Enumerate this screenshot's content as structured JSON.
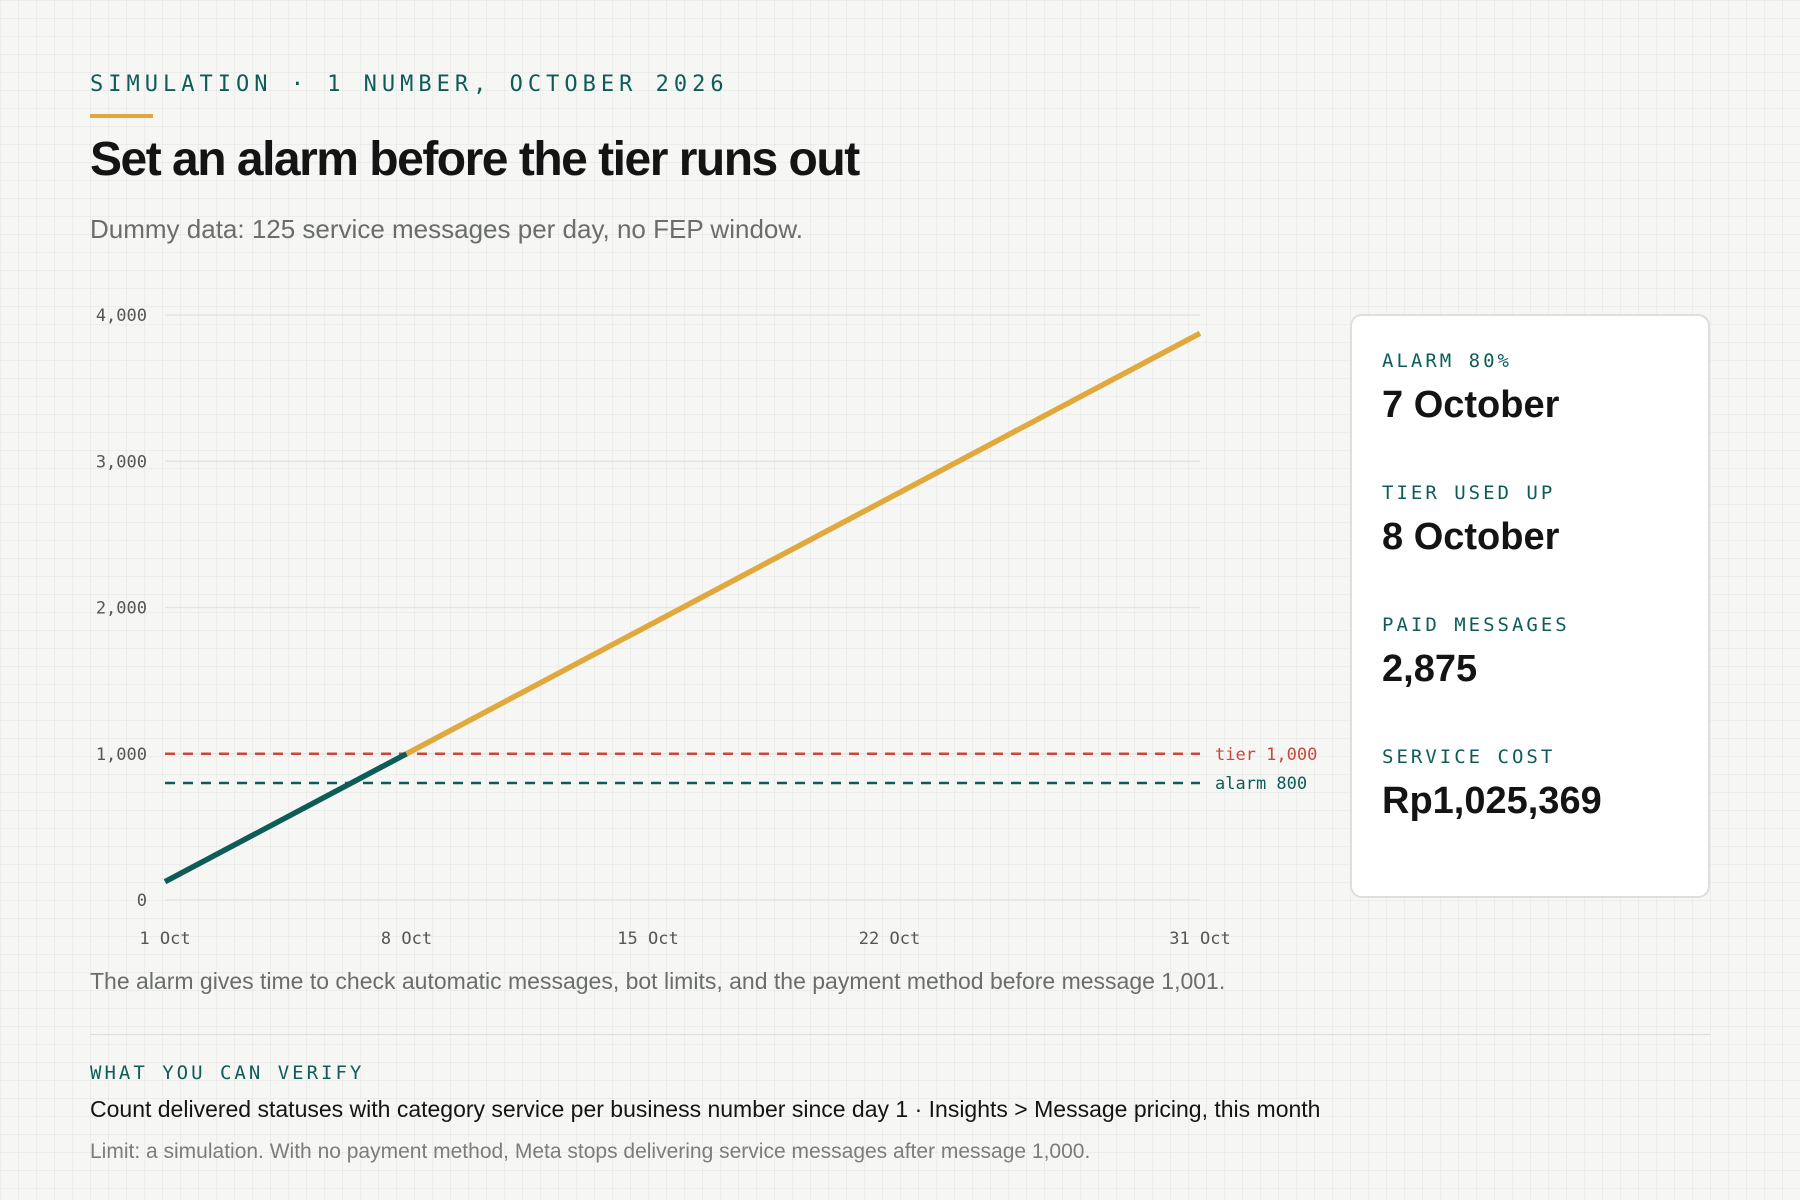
{
  "header": {
    "eyebrow": "SIMULATION · 1 NUMBER, OCTOBER 2026",
    "title": "Set an alarm before the tier runs out",
    "subtitle": "Dummy data: 125 service messages per day, no FEP window."
  },
  "chart_data": {
    "type": "line",
    "x_unit": "day of October 2026",
    "xlim": [
      1,
      31
    ],
    "ylim": [
      0,
      4000
    ],
    "y_ticks": [
      {
        "value": 0,
        "label": "0"
      },
      {
        "value": 1000,
        "label": "1,000"
      },
      {
        "value": 2000,
        "label": "2,000"
      },
      {
        "value": 3000,
        "label": "3,000"
      },
      {
        "value": 4000,
        "label": "4,000"
      }
    ],
    "x_ticks": [
      {
        "value": 1,
        "label": "1 Oct"
      },
      {
        "value": 8,
        "label": "8 Oct"
      },
      {
        "value": 15,
        "label": "15 Oct"
      },
      {
        "value": 22,
        "label": "22 Oct"
      },
      {
        "value": 31,
        "label": "31 Oct"
      }
    ],
    "grid": true,
    "series": [
      {
        "color": "#0e5c57",
        "points": [
          [
            1,
            125
          ],
          [
            8,
            1000
          ]
        ]
      },
      {
        "color": "#e0a93e",
        "points": [
          [
            8,
            1000
          ],
          [
            31,
            3875
          ]
        ]
      }
    ],
    "reference_lines": [
      {
        "value": 1000,
        "label": "tier 1,000",
        "color": "#c9483b"
      },
      {
        "value": 800,
        "label": "alarm 800",
        "color": "#0e5c57"
      }
    ]
  },
  "stats": [
    {
      "label": "ALARM 80%",
      "value": "7 October"
    },
    {
      "label": "TIER USED UP",
      "value": "8 October"
    },
    {
      "label": "PAID MESSAGES",
      "value": "2,875"
    },
    {
      "label": "SERVICE COST",
      "value": "Rp1,025,369"
    }
  ],
  "caption": "The alarm gives time to check automatic messages, bot limits, and the payment method before message 1,001.",
  "verify": {
    "heading": "WHAT YOU CAN VERIFY",
    "text": "Count delivered statuses with category service per business number since day 1 · Insights > Message pricing, this month",
    "limit": "Limit: a simulation. With no payment method, Meta stops delivering service messages after message 1,000."
  }
}
